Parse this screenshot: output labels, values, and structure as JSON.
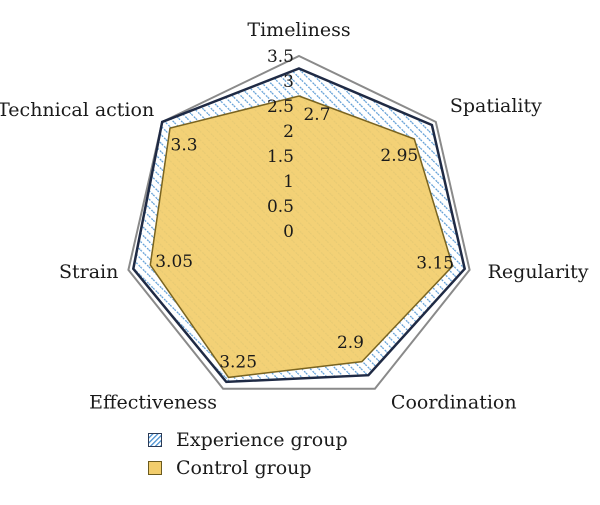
{
  "chart_data": {
    "type": "radar",
    "axes": [
      "Timeliness",
      "Spatiality",
      "Regularity",
      "Coordination",
      "Effectiveness",
      "Strain",
      "Technical action"
    ],
    "scale": {
      "min": 0,
      "max": 3.5,
      "ticks": [
        "0",
        "0.5",
        "1",
        "1.5",
        "2",
        "2.5",
        "3",
        "3.5"
      ]
    },
    "series": [
      {
        "name": "Experience group",
        "values": [
          3.25,
          3.4,
          3.4,
          3.2,
          3.35,
          3.4,
          3.5
        ],
        "color": "#5b9bd5",
        "outline": "#1f2a44"
      },
      {
        "name": "Control group",
        "values": [
          2.7,
          2.95,
          3.15,
          2.9,
          3.25,
          3.05,
          3.3
        ],
        "labels": [
          "2.7",
          "2.95",
          "3.15",
          "2.9",
          "3.25",
          "3.05",
          "3.3"
        ],
        "color": "#f2cd6c",
        "outline": "#7a6420"
      }
    ],
    "grid": false,
    "legend": "bottom-left"
  },
  "legend": {
    "experience_label": "Experience group",
    "control_label": "Control group"
  }
}
